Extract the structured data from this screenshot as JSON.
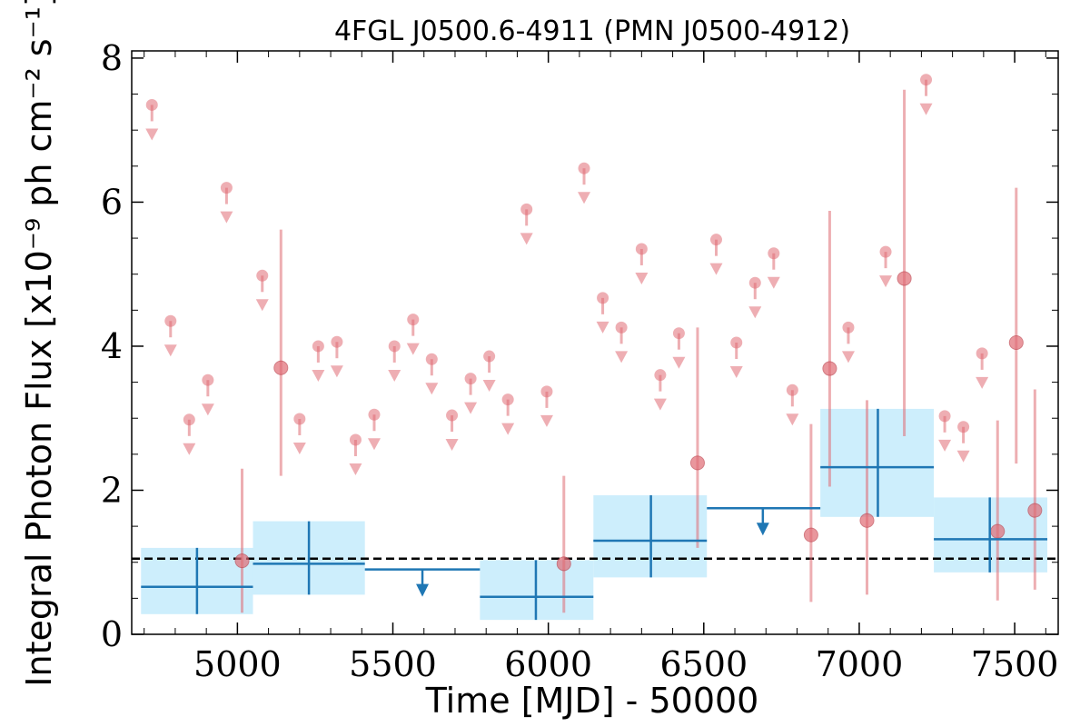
{
  "chart_data": {
    "type": "scatter",
    "title": "4FGL J0500.6-4911 (PMN J0500-4912)",
    "xlabel": "Time [MJD] - 50000",
    "ylabel": "Integral Photon Flux [x10⁻⁹ ph cm⁻² s⁻¹]",
    "xlim": [
      4660,
      7640
    ],
    "ylim": [
      0,
      8.1
    ],
    "xticks": [
      5000,
      5500,
      6000,
      6500,
      7000,
      7500
    ],
    "yticks": [
      0,
      2,
      4,
      6,
      8
    ],
    "x_tick_labels": [
      "5000",
      "5500",
      "6000",
      "6500",
      "7000",
      "7500"
    ],
    "y_tick_labels": [
      "0",
      "2",
      "4",
      "6",
      "8"
    ],
    "grid": false,
    "mean_flux_line": 1.05,
    "colors": {
      "fine_bins": "#e06c75",
      "coarse_bins": "#1f77b4",
      "coarse_band": "#cdeefc",
      "mean_line": "#000000"
    },
    "series": [
      {
        "kind": "fine_bins_detections",
        "points": [
          {
            "x": 5015,
            "y": 1.02,
            "ylo": 0.3,
            "yhi": 2.3
          },
          {
            "x": 5140,
            "y": 3.7,
            "ylo": 2.2,
            "yhi": 5.62
          },
          {
            "x": 6050,
            "y": 0.98,
            "ylo": 0.3,
            "yhi": 2.2
          },
          {
            "x": 6480,
            "y": 2.38,
            "ylo": 1.2,
            "yhi": 4.26
          },
          {
            "x": 6845,
            "y": 1.38,
            "ylo": 0.45,
            "yhi": 2.92
          },
          {
            "x": 6905,
            "y": 3.69,
            "ylo": 2.05,
            "yhi": 5.88
          },
          {
            "x": 7025,
            "y": 1.58,
            "ylo": 0.55,
            "yhi": 3.25
          },
          {
            "x": 7145,
            "y": 4.94,
            "ylo": 2.75,
            "yhi": 7.56
          },
          {
            "x": 7445,
            "y": 1.43,
            "ylo": 0.47,
            "yhi": 2.97
          },
          {
            "x": 7505,
            "y": 4.05,
            "ylo": 2.37,
            "yhi": 6.2
          },
          {
            "x": 7565,
            "y": 1.72,
            "ylo": 0.62,
            "yhi": 3.4
          }
        ]
      },
      {
        "kind": "fine_bins_upper_limits",
        "points": [
          {
            "x": 4725,
            "y": 7.35
          },
          {
            "x": 4785,
            "y": 4.35
          },
          {
            "x": 4845,
            "y": 2.98
          },
          {
            "x": 4905,
            "y": 3.53
          },
          {
            "x": 4965,
            "y": 6.2
          },
          {
            "x": 5080,
            "y": 4.98
          },
          {
            "x": 5200,
            "y": 2.99
          },
          {
            "x": 5260,
            "y": 4.0
          },
          {
            "x": 5320,
            "y": 4.06
          },
          {
            "x": 5380,
            "y": 2.7
          },
          {
            "x": 5440,
            "y": 3.05
          },
          {
            "x": 5505,
            "y": 4.0
          },
          {
            "x": 5565,
            "y": 4.37
          },
          {
            "x": 5625,
            "y": 3.82
          },
          {
            "x": 5690,
            "y": 3.04
          },
          {
            "x": 5750,
            "y": 3.55
          },
          {
            "x": 5810,
            "y": 3.86
          },
          {
            "x": 5870,
            "y": 3.26
          },
          {
            "x": 5930,
            "y": 5.9
          },
          {
            "x": 5995,
            "y": 3.37
          },
          {
            "x": 6115,
            "y": 6.47
          },
          {
            "x": 6175,
            "y": 4.67
          },
          {
            "x": 6235,
            "y": 4.26
          },
          {
            "x": 6300,
            "y": 5.35
          },
          {
            "x": 6360,
            "y": 3.6
          },
          {
            "x": 6420,
            "y": 4.18
          },
          {
            "x": 6540,
            "y": 5.48
          },
          {
            "x": 6605,
            "y": 4.05
          },
          {
            "x": 6665,
            "y": 4.88
          },
          {
            "x": 6725,
            "y": 5.29
          },
          {
            "x": 6785,
            "y": 3.39
          },
          {
            "x": 6965,
            "y": 4.26
          },
          {
            "x": 7085,
            "y": 5.31
          },
          {
            "x": 7215,
            "y": 7.7
          },
          {
            "x": 7275,
            "y": 3.03
          },
          {
            "x": 7335,
            "y": 2.88
          },
          {
            "x": 7395,
            "y": 3.9
          }
        ]
      },
      {
        "kind": "coarse_bins_detections",
        "bins": [
          {
            "x0": 4690,
            "x1": 5050,
            "xc": 4870,
            "y": 0.66,
            "ylo": 0.28,
            "yhi": 1.2
          },
          {
            "x0": 5050,
            "x1": 5410,
            "xc": 5230,
            "y": 0.98,
            "ylo": 0.55,
            "yhi": 1.57
          },
          {
            "x0": 5780,
            "x1": 6145,
            "xc": 5960,
            "y": 0.52,
            "ylo": 0.2,
            "yhi": 1.03
          },
          {
            "x0": 6145,
            "x1": 6510,
            "xc": 6330,
            "y": 1.3,
            "ylo": 0.79,
            "yhi": 1.93
          },
          {
            "x0": 6875,
            "x1": 7240,
            "xc": 7060,
            "y": 2.32,
            "ylo": 1.63,
            "yhi": 3.13
          },
          {
            "x0": 7240,
            "x1": 7605,
            "xc": 7420,
            "y": 1.32,
            "ylo": 0.86,
            "yhi": 1.9
          }
        ]
      },
      {
        "kind": "coarse_bins_upper_limits",
        "bins": [
          {
            "x0": 5410,
            "x1": 5780,
            "xc": 5595,
            "y": 0.9
          },
          {
            "x0": 6510,
            "x1": 6875,
            "xc": 6690,
            "y": 1.75
          }
        ]
      }
    ]
  }
}
